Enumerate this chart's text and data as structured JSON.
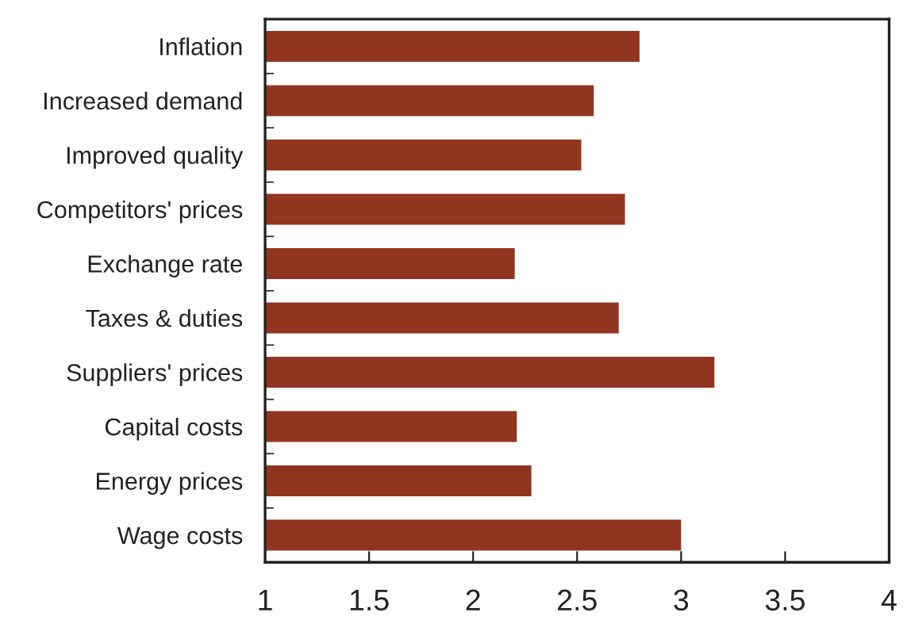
{
  "chart_data": {
    "type": "bar",
    "orientation": "horizontal",
    "categories": [
      "Inflation",
      "Increased demand",
      "Improved quality",
      "Competitors' prices",
      "Exchange rate",
      "Taxes & duties",
      "Suppliers' prices",
      "Capital costs",
      "Energy prices",
      "Wage costs"
    ],
    "values": [
      2.8,
      2.58,
      2.52,
      2.73,
      2.2,
      2.7,
      3.16,
      2.21,
      2.28,
      3.0
    ],
    "color": "#913521",
    "xlim": [
      1,
      4
    ],
    "xticks": [
      1,
      1.5,
      2,
      2.5,
      3,
      3.5,
      4
    ],
    "grid": false,
    "legend": false
  }
}
